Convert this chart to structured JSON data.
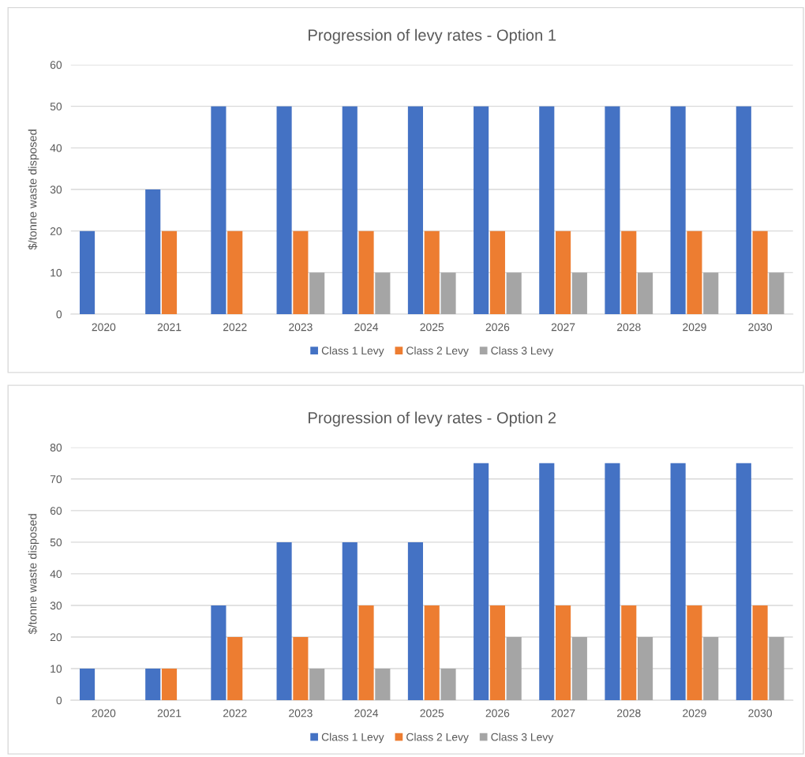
{
  "chart_data": [
    {
      "type": "bar",
      "title": "Progression of levy rates - Option 1",
      "ylabel": "$/tonne waste disposed",
      "categories": [
        "2020",
        "2021",
        "2022",
        "2023",
        "2024",
        "2025",
        "2026",
        "2027",
        "2028",
        "2029",
        "2030"
      ],
      "series": [
        {
          "name": "Class 1 Levy",
          "color": "#4472c4",
          "values": [
            20,
            30,
            50,
            50,
            50,
            50,
            50,
            50,
            50,
            50,
            50
          ]
        },
        {
          "name": "Class 2 Levy",
          "color": "#ed7d31",
          "values": [
            null,
            20,
            20,
            20,
            20,
            20,
            20,
            20,
            20,
            20,
            20
          ]
        },
        {
          "name": "Class 3 Levy",
          "color": "#a5a5a5",
          "values": [
            null,
            null,
            null,
            10,
            10,
            10,
            10,
            10,
            10,
            10,
            10
          ]
        }
      ],
      "ylim": [
        0,
        60
      ],
      "yticks": [
        0,
        10,
        20,
        30,
        40,
        50,
        60
      ],
      "grid": "y",
      "legend": "bottom"
    },
    {
      "type": "bar",
      "title": "Progression of levy rates - Option 2",
      "ylabel": "$/tonne waste disposed",
      "categories": [
        "2020",
        "2021",
        "2022",
        "2023",
        "2024",
        "2025",
        "2026",
        "2027",
        "2028",
        "2029",
        "2030"
      ],
      "series": [
        {
          "name": "Class 1 Levy",
          "color": "#4472c4",
          "values": [
            10,
            10,
            30,
            50,
            50,
            50,
            75,
            75,
            75,
            75,
            75
          ]
        },
        {
          "name": "Class 2 Levy",
          "color": "#ed7d31",
          "values": [
            null,
            10,
            20,
            20,
            30,
            30,
            30,
            30,
            30,
            30,
            30
          ]
        },
        {
          "name": "Class 3 Levy",
          "color": "#a5a5a5",
          "values": [
            null,
            null,
            null,
            10,
            10,
            10,
            20,
            20,
            20,
            20,
            20
          ]
        }
      ],
      "ylim": [
        0,
        80
      ],
      "yticks": [
        0,
        10,
        20,
        30,
        40,
        50,
        60,
        70,
        80
      ],
      "grid": "y",
      "legend": "bottom"
    }
  ]
}
